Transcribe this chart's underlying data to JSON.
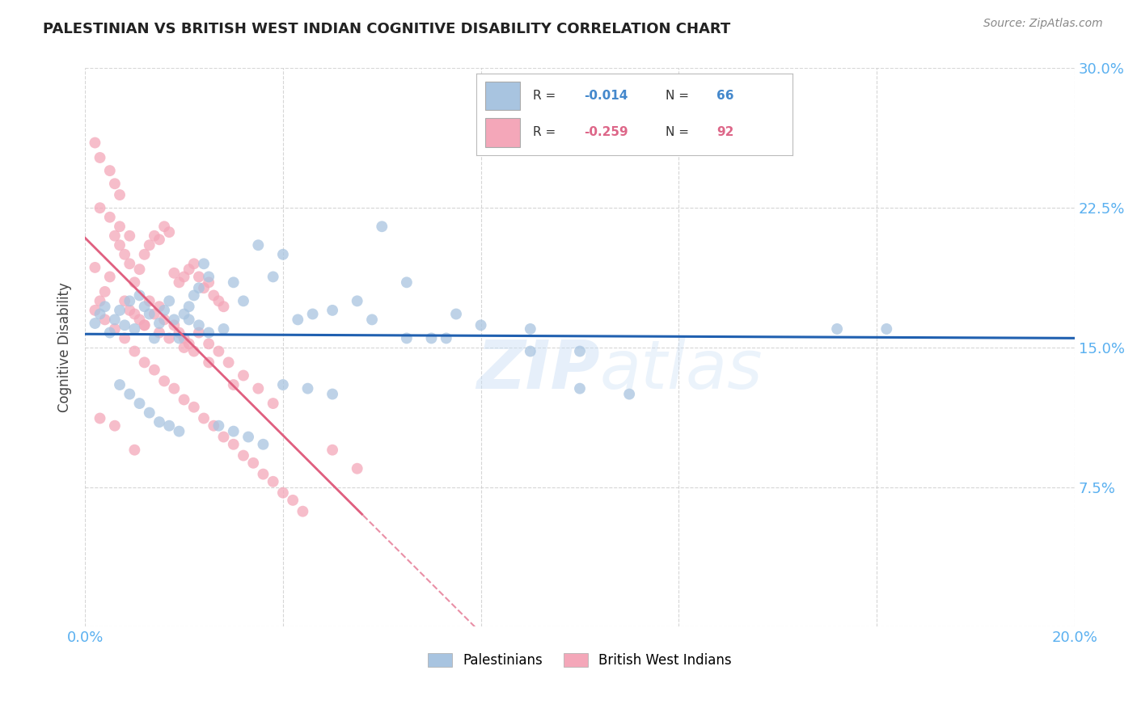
{
  "title": "PALESTINIAN VS BRITISH WEST INDIAN COGNITIVE DISABILITY CORRELATION CHART",
  "source": "Source: ZipAtlas.com",
  "ylabel": "Cognitive Disability",
  "xlim": [
    0.0,
    0.2
  ],
  "ylim": [
    0.0,
    0.3
  ],
  "xticks": [
    0.0,
    0.04,
    0.08,
    0.12,
    0.16,
    0.2
  ],
  "yticks": [
    0.0,
    0.075,
    0.15,
    0.225,
    0.3
  ],
  "blue_R": -0.014,
  "blue_N": 66,
  "pink_R": -0.259,
  "pink_N": 92,
  "blue_color": "#a8c4e0",
  "pink_color": "#f4a7b9",
  "blue_line_color": "#2060b0",
  "pink_line_color": "#e06080",
  "watermark": "ZIPatlas",
  "background_color": "#ffffff",
  "grid_color": "#cccccc",
  "tick_label_color": "#5ab0f0",
  "legend_blue_text_color": "#4488cc",
  "legend_pink_text_color": "#dd6688",
  "blue_scatter_x": [
    0.002,
    0.003,
    0.004,
    0.005,
    0.006,
    0.007,
    0.008,
    0.009,
    0.01,
    0.011,
    0.012,
    0.013,
    0.014,
    0.015,
    0.016,
    0.017,
    0.018,
    0.019,
    0.02,
    0.021,
    0.022,
    0.023,
    0.024,
    0.025,
    0.028,
    0.03,
    0.032,
    0.035,
    0.038,
    0.04,
    0.043,
    0.046,
    0.05,
    0.055,
    0.06,
    0.065,
    0.07,
    0.075,
    0.08,
    0.09,
    0.1,
    0.11,
    0.007,
    0.009,
    0.011,
    0.013,
    0.015,
    0.017,
    0.019,
    0.021,
    0.023,
    0.025,
    0.027,
    0.03,
    0.033,
    0.036,
    0.04,
    0.045,
    0.05,
    0.058,
    0.065,
    0.073,
    0.152,
    0.162,
    0.09,
    0.1
  ],
  "blue_scatter_y": [
    0.163,
    0.168,
    0.172,
    0.158,
    0.165,
    0.17,
    0.162,
    0.175,
    0.16,
    0.178,
    0.172,
    0.168,
    0.155,
    0.163,
    0.17,
    0.175,
    0.165,
    0.155,
    0.168,
    0.172,
    0.178,
    0.182,
    0.195,
    0.188,
    0.16,
    0.185,
    0.175,
    0.205,
    0.188,
    0.2,
    0.165,
    0.168,
    0.17,
    0.175,
    0.215,
    0.185,
    0.155,
    0.168,
    0.162,
    0.148,
    0.128,
    0.125,
    0.13,
    0.125,
    0.12,
    0.115,
    0.11,
    0.108,
    0.105,
    0.165,
    0.162,
    0.158,
    0.108,
    0.105,
    0.102,
    0.098,
    0.13,
    0.128,
    0.125,
    0.165,
    0.155,
    0.155,
    0.16,
    0.16,
    0.16,
    0.148
  ],
  "pink_scatter_x": [
    0.002,
    0.003,
    0.004,
    0.005,
    0.006,
    0.007,
    0.008,
    0.009,
    0.01,
    0.011,
    0.012,
    0.013,
    0.014,
    0.015,
    0.016,
    0.017,
    0.018,
    0.019,
    0.02,
    0.021,
    0.022,
    0.023,
    0.024,
    0.025,
    0.026,
    0.027,
    0.028,
    0.002,
    0.003,
    0.005,
    0.006,
    0.007,
    0.008,
    0.009,
    0.01,
    0.011,
    0.012,
    0.013,
    0.014,
    0.015,
    0.016,
    0.017,
    0.018,
    0.019,
    0.02,
    0.021,
    0.022,
    0.023,
    0.025,
    0.027,
    0.029,
    0.032,
    0.035,
    0.038,
    0.002,
    0.004,
    0.006,
    0.008,
    0.01,
    0.012,
    0.014,
    0.016,
    0.018,
    0.02,
    0.022,
    0.024,
    0.026,
    0.028,
    0.03,
    0.032,
    0.034,
    0.036,
    0.038,
    0.04,
    0.042,
    0.044,
    0.05,
    0.055,
    0.003,
    0.005,
    0.007,
    0.009,
    0.012,
    0.015,
    0.02,
    0.025,
    0.03,
    0.003,
    0.006,
    0.01
  ],
  "pink_scatter_y": [
    0.193,
    0.175,
    0.18,
    0.188,
    0.21,
    0.205,
    0.2,
    0.195,
    0.185,
    0.192,
    0.2,
    0.205,
    0.21,
    0.208,
    0.215,
    0.212,
    0.19,
    0.185,
    0.188,
    0.192,
    0.195,
    0.188,
    0.182,
    0.185,
    0.178,
    0.175,
    0.172,
    0.26,
    0.252,
    0.245,
    0.238,
    0.232,
    0.175,
    0.17,
    0.168,
    0.165,
    0.162,
    0.175,
    0.168,
    0.172,
    0.165,
    0.155,
    0.162,
    0.158,
    0.155,
    0.152,
    0.148,
    0.158,
    0.152,
    0.148,
    0.142,
    0.135,
    0.128,
    0.12,
    0.17,
    0.165,
    0.16,
    0.155,
    0.148,
    0.142,
    0.138,
    0.132,
    0.128,
    0.122,
    0.118,
    0.112,
    0.108,
    0.102,
    0.098,
    0.092,
    0.088,
    0.082,
    0.078,
    0.072,
    0.068,
    0.062,
    0.095,
    0.085,
    0.225,
    0.22,
    0.215,
    0.21,
    0.162,
    0.158,
    0.15,
    0.142,
    0.13,
    0.112,
    0.108,
    0.095
  ]
}
